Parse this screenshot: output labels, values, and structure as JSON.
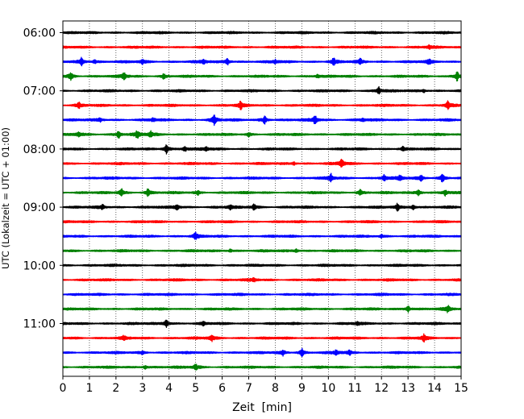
{
  "chart_data": {
    "type": "line",
    "title": "",
    "xlabel": "Zeit  [min]",
    "ylabel": "UTC (Lokalzeit = UTC + 01:00)",
    "xlim": [
      0,
      15
    ],
    "x_ticks": [
      0,
      1,
      2,
      3,
      4,
      5,
      6,
      7,
      8,
      9,
      10,
      11,
      12,
      13,
      14,
      15
    ],
    "y_tick_labels": [
      "06:00",
      "07:00",
      "08:00",
      "09:00",
      "10:00",
      "11:00"
    ],
    "grid": "vertical dotted",
    "trace_colors": [
      "#000000",
      "#ff0000",
      "#0000ff",
      "#008000"
    ],
    "traces_start": "06:00",
    "trace_interval_minutes": 15,
    "traces": [
      {
        "start": "06:00",
        "color": "#000000",
        "events": []
      },
      {
        "start": "06:15",
        "color": "#ff0000",
        "events": [
          {
            "t": 13.8,
            "a": 1.6
          }
        ]
      },
      {
        "start": "06:30",
        "color": "#0000ff",
        "events": [
          {
            "t": 0.7,
            "a": 3.5
          },
          {
            "t": 1.2,
            "a": 1.8
          },
          {
            "t": 3.0,
            "a": 1.8
          },
          {
            "t": 5.3,
            "a": 2.0
          },
          {
            "t": 6.2,
            "a": 2.8
          },
          {
            "t": 8.0,
            "a": 1.6
          },
          {
            "t": 10.2,
            "a": 3.2
          },
          {
            "t": 11.2,
            "a": 2.2
          },
          {
            "t": 13.8,
            "a": 2.5
          }
        ]
      },
      {
        "start": "06:45",
        "color": "#008000",
        "events": [
          {
            "t": 0.3,
            "a": 3.5
          },
          {
            "t": 2.3,
            "a": 3.0
          },
          {
            "t": 3.8,
            "a": 2.2
          },
          {
            "t": 9.6,
            "a": 1.8
          },
          {
            "t": 14.85,
            "a": 4.5
          }
        ]
      },
      {
        "start": "07:00",
        "color": "#000000",
        "events": [
          {
            "t": 11.9,
            "a": 3.5
          },
          {
            "t": 13.6,
            "a": 1.4
          }
        ]
      },
      {
        "start": "07:15",
        "color": "#ff0000",
        "events": [
          {
            "t": 0.6,
            "a": 2.5
          },
          {
            "t": 6.7,
            "a": 3.5
          },
          {
            "t": 14.5,
            "a": 3.5
          }
        ]
      },
      {
        "start": "07:30",
        "color": "#0000ff",
        "events": [
          {
            "t": 1.4,
            "a": 1.6
          },
          {
            "t": 3.4,
            "a": 1.5
          },
          {
            "t": 5.7,
            "a": 4.5
          },
          {
            "t": 7.6,
            "a": 3.8
          },
          {
            "t": 9.5,
            "a": 4.0
          },
          {
            "t": 11.3,
            "a": 1.8
          }
        ]
      },
      {
        "start": "07:45",
        "color": "#008000",
        "events": [
          {
            "t": 0.6,
            "a": 2.2
          },
          {
            "t": 2.1,
            "a": 3.5
          },
          {
            "t": 2.8,
            "a": 3.2
          },
          {
            "t": 3.3,
            "a": 2.8
          },
          {
            "t": 7.0,
            "a": 1.6
          }
        ]
      },
      {
        "start": "08:00",
        "color": "#000000",
        "events": [
          {
            "t": 3.9,
            "a": 4.5
          },
          {
            "t": 4.6,
            "a": 2.4
          },
          {
            "t": 5.4,
            "a": 1.8
          },
          {
            "t": 12.8,
            "a": 2.0
          }
        ]
      },
      {
        "start": "08:15",
        "color": "#ff0000",
        "events": [
          {
            "t": 8.7,
            "a": 1.4
          },
          {
            "t": 10.5,
            "a": 3.8
          }
        ]
      },
      {
        "start": "08:30",
        "color": "#0000ff",
        "events": [
          {
            "t": 10.1,
            "a": 3.5
          },
          {
            "t": 12.1,
            "a": 2.8
          },
          {
            "t": 12.7,
            "a": 2.4
          },
          {
            "t": 13.5,
            "a": 2.4
          },
          {
            "t": 14.3,
            "a": 3.8
          }
        ]
      },
      {
        "start": "08:45",
        "color": "#008000",
        "events": [
          {
            "t": 2.2,
            "a": 3.5
          },
          {
            "t": 3.2,
            "a": 3.2
          },
          {
            "t": 5.1,
            "a": 2.0
          },
          {
            "t": 11.2,
            "a": 2.8
          },
          {
            "t": 13.4,
            "a": 3.2
          },
          {
            "t": 14.4,
            "a": 2.8
          }
        ]
      },
      {
        "start": "09:00",
        "color": "#000000",
        "events": [
          {
            "t": 1.5,
            "a": 2.0
          },
          {
            "t": 4.3,
            "a": 2.8
          },
          {
            "t": 6.3,
            "a": 1.8
          },
          {
            "t": 7.2,
            "a": 2.8
          },
          {
            "t": 12.6,
            "a": 3.2
          },
          {
            "t": 13.2,
            "a": 2.4
          }
        ]
      },
      {
        "start": "09:15",
        "color": "#ff0000",
        "events": []
      },
      {
        "start": "09:30",
        "color": "#0000ff",
        "events": [
          {
            "t": 5.0,
            "a": 3.5
          },
          {
            "t": 12.0,
            "a": 1.6
          }
        ]
      },
      {
        "start": "09:45",
        "color": "#008000",
        "events": [
          {
            "t": 6.3,
            "a": 1.4
          },
          {
            "t": 8.8,
            "a": 1.5
          }
        ]
      },
      {
        "start": "10:00",
        "color": "#000000",
        "events": []
      },
      {
        "start": "10:15",
        "color": "#ff0000",
        "events": [
          {
            "t": 7.2,
            "a": 1.5
          }
        ]
      },
      {
        "start": "10:30",
        "color": "#0000ff",
        "events": []
      },
      {
        "start": "10:45",
        "color": "#008000",
        "events": [
          {
            "t": 13.0,
            "a": 3.0
          },
          {
            "t": 14.5,
            "a": 3.0
          }
        ]
      },
      {
        "start": "11:00",
        "color": "#000000",
        "events": [
          {
            "t": 3.9,
            "a": 3.5
          },
          {
            "t": 5.3,
            "a": 1.5
          },
          {
            "t": 11.1,
            "a": 1.5
          }
        ]
      },
      {
        "start": "11:15",
        "color": "#ff0000",
        "events": [
          {
            "t": 2.3,
            "a": 1.8
          },
          {
            "t": 5.6,
            "a": 2.8
          },
          {
            "t": 13.6,
            "a": 3.0
          }
        ]
      },
      {
        "start": "11:30",
        "color": "#0000ff",
        "events": [
          {
            "t": 3.0,
            "a": 1.6
          },
          {
            "t": 8.3,
            "a": 2.5
          },
          {
            "t": 9.0,
            "a": 3.5
          },
          {
            "t": 10.3,
            "a": 2.4
          },
          {
            "t": 10.8,
            "a": 2.0
          }
        ]
      },
      {
        "start": "11:45",
        "color": "#008000",
        "events": [
          {
            "t": 3.1,
            "a": 1.6
          },
          {
            "t": 5.0,
            "a": 3.0
          }
        ]
      }
    ]
  }
}
